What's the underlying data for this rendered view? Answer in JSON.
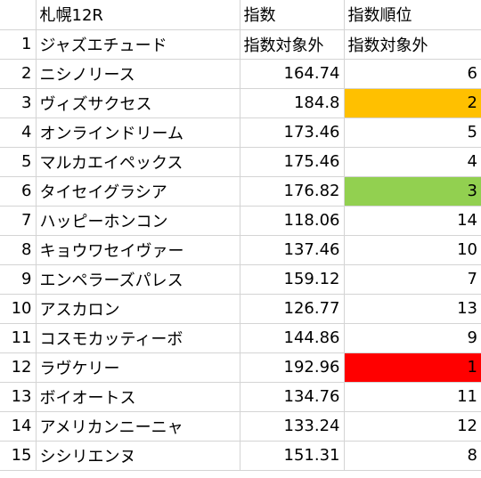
{
  "sheet": {
    "header": {
      "num": "",
      "name": "札幌12R",
      "index": "指数",
      "rank": "指数順位"
    },
    "rows": [
      {
        "num": "1",
        "name": "ジャズエチュード",
        "index": "指数対象外",
        "rank": "指数対象外",
        "index_text": true,
        "rank_text": true,
        "fill": ""
      },
      {
        "num": "2",
        "name": "ニシノリース",
        "index": "164.74",
        "rank": "6",
        "fill": ""
      },
      {
        "num": "3",
        "name": "ヴィズサクセス",
        "index": "184.8",
        "rank": "2",
        "fill": "#ffc000"
      },
      {
        "num": "4",
        "name": "オンラインドリーム",
        "index": "173.46",
        "rank": "5",
        "fill": ""
      },
      {
        "num": "5",
        "name": "マルカエイペックス",
        "index": "175.46",
        "rank": "4",
        "fill": ""
      },
      {
        "num": "6",
        "name": "タイセイグラシア",
        "index": "176.82",
        "rank": "3",
        "fill": "#92d050"
      },
      {
        "num": "7",
        "name": "ハッピーホンコン",
        "index": "118.06",
        "rank": "14",
        "fill": ""
      },
      {
        "num": "8",
        "name": "キョウワセイヴァー",
        "index": "137.46",
        "rank": "10",
        "fill": ""
      },
      {
        "num": "9",
        "name": "エンペラーズパレス",
        "index": "159.12",
        "rank": "7",
        "fill": ""
      },
      {
        "num": "10",
        "name": "アスカロン",
        "index": "126.77",
        "rank": "13",
        "fill": ""
      },
      {
        "num": "11",
        "name": "コスモカッティーボ",
        "index": "144.86",
        "rank": "9",
        "fill": ""
      },
      {
        "num": "12",
        "name": "ラヴケリー",
        "index": "192.96",
        "rank": "1",
        "fill": "#ff0000"
      },
      {
        "num": "13",
        "name": "ボイオートス",
        "index": "134.76",
        "rank": "11",
        "fill": ""
      },
      {
        "num": "14",
        "name": "アメリカンニーニャ",
        "index": "133.24",
        "rank": "12",
        "fill": ""
      },
      {
        "num": "15",
        "name": "シシリエンヌ",
        "index": "151.31",
        "rank": "8",
        "fill": ""
      }
    ]
  }
}
